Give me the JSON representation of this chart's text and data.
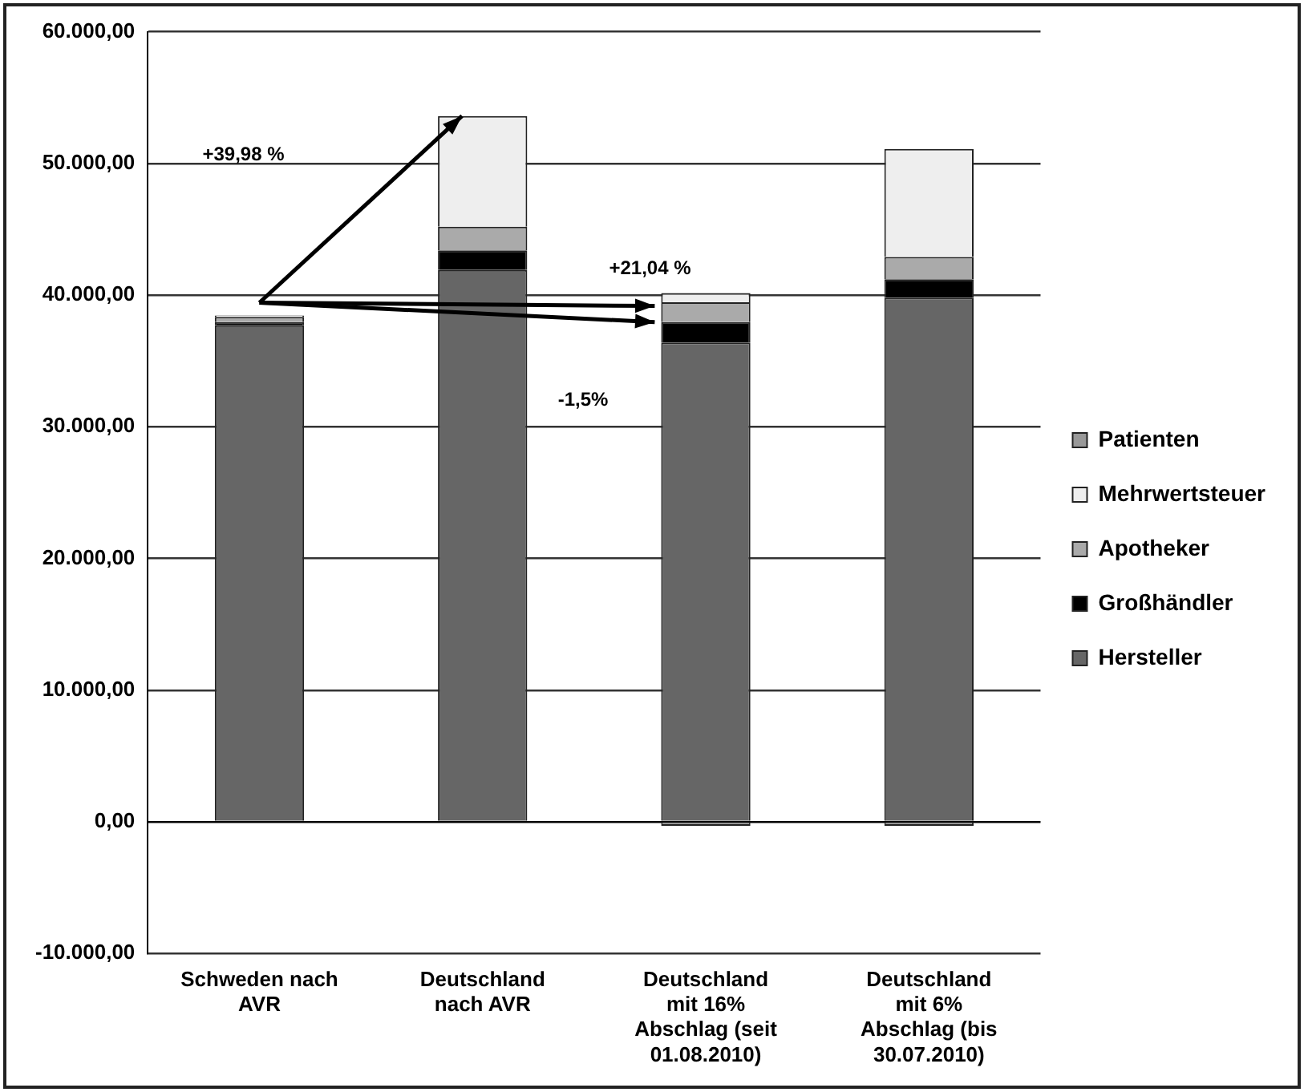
{
  "chart_data": {
    "type": "bar",
    "stacked": true,
    "categories": [
      "Schweden nach AVR",
      "Deutschland nach AVR",
      "Deutschland mit 16% Abschlag (seit 01.08.2010)",
      "Deutschland mit 6% Abschlag (bis 30.07.2010)"
    ],
    "series": [
      {
        "name": "Hersteller",
        "color": "#666666",
        "values": [
          37700,
          41900,
          36400,
          39800
        ]
      },
      {
        "name": "Großhändler",
        "color": "#000000",
        "values": [
          250,
          1500,
          1550,
          1400
        ]
      },
      {
        "name": "Apotheker",
        "color": "#aaaaaa",
        "values": [
          400,
          1800,
          1500,
          1700
        ]
      },
      {
        "name": "Mehrwertsteuer",
        "color": "#eeeeee",
        "values": [
          100,
          8400,
          700,
          8200
        ]
      },
      {
        "name": "Patienten",
        "color": "#999999",
        "values": [
          0,
          0,
          -300,
          -300
        ]
      }
    ],
    "ylim": [
      -10000,
      60000
    ],
    "yticks": [
      {
        "value": -10000,
        "label": "-10.000,00"
      },
      {
        "value": 0,
        "label": "0,00"
      },
      {
        "value": 10000,
        "label": "10.000,00"
      },
      {
        "value": 20000,
        "label": "20.000,00"
      },
      {
        "value": 30000,
        "label": "30.000,00"
      },
      {
        "value": 40000,
        "label": "40.000,00"
      },
      {
        "value": 50000,
        "label": "50.000,00"
      },
      {
        "value": 60000,
        "label": "60.000,00"
      }
    ],
    "grid": "y",
    "legend": "right",
    "annotations": [
      "+39,98 %",
      "+21,04 %",
      "-1,5%"
    ]
  }
}
